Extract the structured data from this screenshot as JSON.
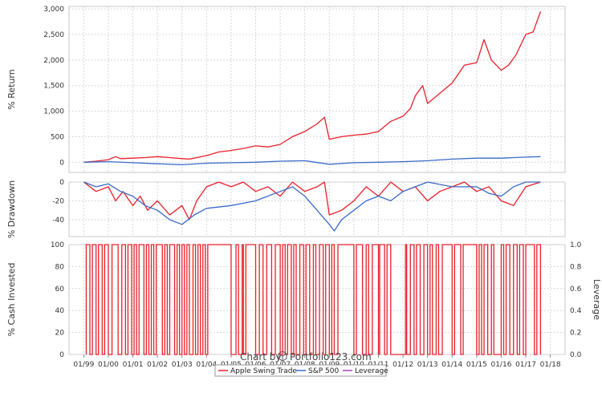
{
  "chart_data": [
    {
      "type": "line",
      "title": "",
      "ylabel": "% Return",
      "ylim": [
        -200,
        3050
      ],
      "yticks": [
        0,
        500,
        1000,
        1500,
        2000,
        2500,
        3000
      ],
      "ytick_labels": [
        "0",
        "500",
        "1,000",
        "1,500",
        "2,000",
        "2,500",
        "3,000"
      ],
      "grid": true,
      "series": [
        {
          "name": "Apple Swing Trade",
          "color": "#e8202a",
          "x": [
            1999.0,
            1999.5,
            2000.0,
            2000.3,
            2000.5,
            2001.0,
            2001.5,
            2002.0,
            2002.5,
            2003.0,
            2003.3,
            2003.5,
            2004.0,
            2004.5,
            2005.0,
            2005.5,
            2006.0,
            2006.5,
            2007.0,
            2007.5,
            2008.0,
            2008.5,
            2008.8,
            2009.0,
            2009.5,
            2010.0,
            2010.5,
            2011.0,
            2011.5,
            2012.0,
            2012.3,
            2012.5,
            2012.8,
            2013.0,
            2013.5,
            2014.0,
            2014.5,
            2015.0,
            2015.3,
            2015.6,
            2016.0,
            2016.3,
            2016.6,
            2017.0,
            2017.3,
            2017.6
          ],
          "y": [
            0,
            20,
            50,
            110,
            70,
            80,
            90,
            110,
            90,
            70,
            60,
            80,
            130,
            200,
            230,
            270,
            320,
            300,
            350,
            500,
            600,
            750,
            880,
            450,
            500,
            530,
            550,
            600,
            800,
            900,
            1050,
            1300,
            1500,
            1150,
            1350,
            1550,
            1900,
            1950,
            2400,
            2000,
            1800,
            1900,
            2100,
            2500,
            2550,
            2950
          ]
        },
        {
          "name": "S&P 500",
          "color": "#3a6ac8",
          "x": [
            1999.0,
            2000.0,
            2001.0,
            2002.0,
            2003.0,
            2004.0,
            2005.0,
            2006.0,
            2007.0,
            2008.0,
            2009.0,
            2010.0,
            2011.0,
            2012.0,
            2013.0,
            2014.0,
            2015.0,
            2016.0,
            2017.0,
            2017.6
          ],
          "y": [
            0,
            10,
            -10,
            -30,
            -50,
            -20,
            -10,
            0,
            20,
            30,
            -40,
            -10,
            0,
            10,
            30,
            60,
            80,
            80,
            100,
            110
          ]
        }
      ]
    },
    {
      "type": "line",
      "title": "",
      "ylabel": "% Drawdown",
      "ylim": [
        -58,
        0
      ],
      "yticks": [
        0,
        -20,
        -40
      ],
      "ytick_labels": [
        "0",
        "-20",
        "-40"
      ],
      "grid": true,
      "series": [
        {
          "name": "Apple Swing Trade",
          "color": "#e8202a",
          "x": [
            1999.0,
            1999.5,
            2000.0,
            2000.3,
            2000.6,
            2001.0,
            2001.3,
            2001.6,
            2002.0,
            2002.5,
            2003.0,
            2003.3,
            2003.6,
            2004.0,
            2004.5,
            2005.0,
            2005.5,
            2006.0,
            2006.5,
            2007.0,
            2007.5,
            2008.0,
            2008.5,
            2008.8,
            2009.0,
            2009.5,
            2010.0,
            2010.5,
            2011.0,
            2011.5,
            2012.0,
            2012.5,
            2013.0,
            2013.5,
            2014.0,
            2014.5,
            2015.0,
            2015.5,
            2016.0,
            2016.5,
            2017.0,
            2017.6
          ],
          "y": [
            0,
            -10,
            -5,
            -20,
            -10,
            -25,
            -15,
            -30,
            -20,
            -35,
            -25,
            -40,
            -20,
            -5,
            0,
            -5,
            0,
            -10,
            -5,
            -15,
            0,
            -10,
            -5,
            0,
            -35,
            -30,
            -20,
            -5,
            -15,
            0,
            -10,
            -5,
            -20,
            -10,
            -5,
            0,
            -10,
            -5,
            -20,
            -25,
            -5,
            0
          ]
        },
        {
          "name": "S&P 500",
          "color": "#3a6ac8",
          "x": [
            1999.0,
            1999.5,
            2000.0,
            2000.5,
            2001.0,
            2001.5,
            2002.0,
            2002.5,
            2003.0,
            2003.5,
            2004.0,
            2005.0,
            2006.0,
            2007.0,
            2007.5,
            2008.0,
            2008.5,
            2009.0,
            2009.2,
            2009.5,
            2010.0,
            2010.5,
            2011.0,
            2011.5,
            2012.0,
            2012.5,
            2013.0,
            2014.0,
            2015.0,
            2015.5,
            2016.0,
            2016.5,
            2017.0,
            2017.6
          ],
          "y": [
            0,
            -5,
            -2,
            -10,
            -15,
            -25,
            -30,
            -40,
            -45,
            -35,
            -28,
            -25,
            -20,
            -10,
            -5,
            -15,
            -30,
            -45,
            -52,
            -40,
            -30,
            -20,
            -15,
            -20,
            -10,
            -5,
            0,
            -5,
            -5,
            -12,
            -15,
            -5,
            0,
            0
          ]
        }
      ]
    },
    {
      "type": "line",
      "title": "",
      "ylabel": "% Cash Invested",
      "ylabel_right": "Leverage",
      "ylim": [
        0,
        100
      ],
      "yticks": [
        0,
        20,
        40,
        60,
        80,
        100
      ],
      "ytick_labels": [
        "0",
        "20",
        "40",
        "60",
        "80",
        "100"
      ],
      "y2ticks": [
        "0.0",
        "0.2",
        "0.4",
        "0.6",
        "0.8",
        "1.0"
      ],
      "grid": true,
      "series": [
        {
          "name": "Apple Swing Trade",
          "color": "#e8202a",
          "step_x": [
            1999.1,
            1999.25,
            1999.35,
            1999.5,
            1999.6,
            1999.75,
            1999.85,
            2000.0,
            2000.15,
            2000.4,
            2000.55,
            2000.7,
            2000.8,
            2000.95,
            2001.05,
            2001.15,
            2001.25,
            2001.45,
            2001.55,
            2001.65,
            2001.75,
            2001.85,
            2001.95,
            2002.2,
            2002.3,
            2002.4,
            2002.5,
            2002.7,
            2002.8,
            2002.9,
            2003.0,
            2003.1,
            2003.2,
            2003.3,
            2003.45,
            2003.55,
            2003.65,
            2003.75,
            2003.85,
            2003.95,
            2004.05,
            2005.0,
            2005.2,
            2005.3,
            2005.45,
            2005.5,
            2005.6,
            2006.0,
            2006.15,
            2006.3,
            2006.45,
            2006.65,
            2006.8,
            2007.0,
            2007.1,
            2007.2,
            2007.3,
            2007.45,
            2007.55,
            2007.65,
            2007.8,
            2007.95,
            2008.05,
            2008.2,
            2008.35,
            2008.45,
            2008.6,
            2008.75,
            2008.85,
            2009.0,
            2009.1,
            2009.2,
            2009.35,
            2010.0,
            2010.1,
            2010.35,
            2010.5,
            2010.6,
            2010.75,
            2011.0,
            2011.05,
            2011.25,
            2011.35,
            2011.5,
            2012.1,
            2012.15,
            2012.3,
            2012.45,
            2012.55,
            2012.7,
            2012.85,
            2013.0,
            2013.1,
            2013.2,
            2013.35,
            2013.45,
            2013.6,
            2014.0,
            2014.1,
            2014.35,
            2014.45,
            2015.0,
            2015.1,
            2015.2,
            2015.3,
            2015.45,
            2015.6,
            2015.7,
            2016.0,
            2016.1,
            2016.2,
            2016.35,
            2016.5,
            2016.65,
            2016.75,
            2016.9,
            2017.0,
            2017.35,
            2017.45,
            2017.6
          ],
          "step_note": "toggles between 0 and 100 at each x, starting at 0"
        }
      ]
    }
  ],
  "x_axis": {
    "range": [
      1998.4,
      2018.6
    ],
    "ticks": [
      1999,
      2000,
      2001,
      2002,
      2003,
      2004,
      2005,
      2006,
      2007,
      2008,
      2009,
      2010,
      2011,
      2012,
      2013,
      2014,
      2015,
      2016,
      2017,
      2018
    ],
    "tick_labels": [
      "01/99",
      "01/00",
      "01/01",
      "01/02",
      "01/03",
      "01/04",
      "01/05",
      "01/06",
      "01/07",
      "01/08",
      "01/09",
      "01/10",
      "01/11",
      "01/12",
      "01/13",
      "01/14",
      "01/15",
      "01/16",
      "01/17",
      "01/18"
    ]
  },
  "footer": {
    "prefix": "Chart by",
    "brand": "Portfolio123.com"
  },
  "legend": {
    "placement": "bottom-center",
    "items": [
      {
        "label": "Apple Swing Trade",
        "color": "#e8202a"
      },
      {
        "label": "S&P 500",
        "color": "#3a6ac8"
      },
      {
        "label": "Leverage",
        "color": "#b040c0"
      }
    ]
  }
}
